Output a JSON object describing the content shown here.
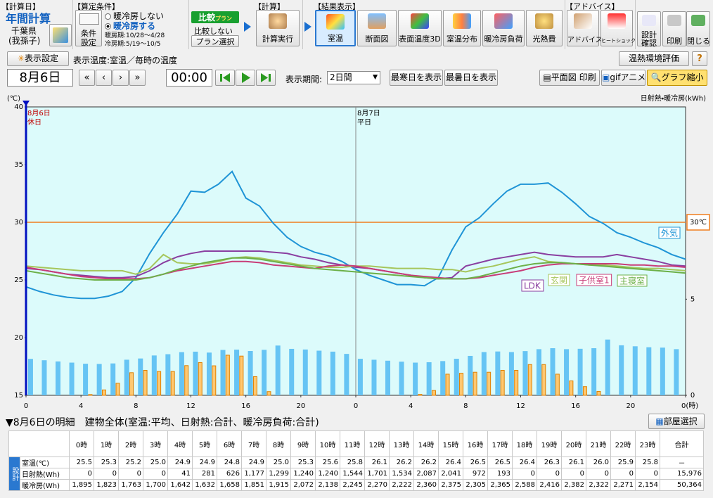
{
  "toolbar": {
    "calc_day": {
      "header": "【計算日】",
      "mode": "年間計算",
      "prefecture": "千葉県",
      "city": "(我孫子)"
    },
    "conditions": {
      "header": "【算定条件】",
      "button_top": "条件",
      "button_bottom": "設定",
      "options": [
        "暖冷房しない",
        "暖冷房する"
      ],
      "selected": 1,
      "heating": "暖房期:10/28～4/28",
      "cooling": "冷房期:5/19～10/5"
    },
    "compare": {
      "title": "比較",
      "title_sub": "プラン",
      "option": "比較しない",
      "button": "プラン選択"
    },
    "calc": {
      "header": "【計算】",
      "button": "計算実行"
    },
    "results": {
      "header": "【結果表示】",
      "buttons": [
        "室温",
        "断面図",
        "表面温度3D",
        "室温分布",
        "暖冷房負荷",
        "光熱費"
      ],
      "active": 0
    },
    "advice": {
      "header": "【アドバイス】",
      "buttons": [
        "アドバイス",
        "ヒートショック"
      ]
    },
    "tools": [
      [
        "設計",
        "確認"
      ],
      [
        "印刷"
      ],
      [
        "閉じる"
      ]
    ]
  },
  "display_bar": {
    "settings": "表示設定",
    "temp_mode": "表示温度:室温／毎時の温度",
    "evaluation": "温熱環境評価",
    "help": "?"
  },
  "nav_bar": {
    "date": "8月6日",
    "nav": [
      "«",
      "‹",
      "›",
      "»"
    ],
    "time": "00:00",
    "period_label": "表示期間:",
    "period": "2日間",
    "coldest": "最寒日を表示",
    "hottest": "最暑日を表示",
    "plan_print": "平面図 印刷",
    "gif": "gifアニメ",
    "shrink": "グラフ縮小"
  },
  "chart_data": {
    "type": "line",
    "y_label": "(℃)",
    "y2_label": "日射熱・暖冷房(kWh)",
    "x": [
      0,
      1,
      2,
      3,
      4,
      5,
      6,
      7,
      8,
      9,
      10,
      11,
      12,
      13,
      14,
      15,
      16,
      17,
      18,
      19,
      20,
      21,
      22,
      23,
      24,
      25,
      26,
      27,
      28,
      29,
      30,
      31,
      32,
      33,
      34,
      35,
      36,
      37,
      38,
      39,
      40,
      41,
      42,
      43,
      44,
      45,
      46,
      47,
      48
    ],
    "xlim": [
      0,
      48
    ],
    "xticks": [
      0,
      4,
      8,
      12,
      16,
      20,
      {
        "value": 24,
        "label": "0"
      },
      {
        "value": 28,
        "label": "4"
      },
      {
        "value": 32,
        "label": "8"
      },
      {
        "value": 36,
        "label": "12"
      },
      {
        "value": 40,
        "label": "16"
      },
      {
        "value": 44,
        "label": "20"
      },
      {
        "value": 48,
        "label": "0(時)"
      }
    ],
    "ylim": [
      15,
      40
    ],
    "yticks": [
      15,
      20,
      25,
      30,
      35,
      40
    ],
    "y2lim": [
      0,
      15
    ],
    "y2ticks": [
      0,
      5
    ],
    "cursor_x": 0,
    "reference_line": {
      "value": 30,
      "label": "30℃",
      "color": "#f07d1e"
    },
    "date_markers": [
      {
        "x": 0,
        "date": "8月6日",
        "day": "休日",
        "color": "#c00000"
      },
      {
        "x": 24,
        "date": "8月7日",
        "day": "平日",
        "color": "#000000"
      }
    ],
    "series": [
      {
        "name": "外気",
        "color": "#1f94d6",
        "values": [
          24.4,
          24.0,
          23.7,
          23.5,
          23.4,
          23.4,
          23.6,
          24.0,
          25.2,
          27.3,
          29.1,
          30.7,
          32.7,
          32.6,
          33.3,
          34.4,
          32.1,
          31.4,
          29.9,
          28.7,
          27.9,
          27.4,
          27.1,
          26.6,
          25.9,
          25.4,
          25.0,
          24.6,
          24.6,
          24.5,
          25.2,
          27.6,
          29.6,
          30.4,
          31.6,
          32.7,
          33.3,
          33.3,
          33.4,
          32.6,
          31.6,
          30.5,
          29.9,
          29.1,
          28.7,
          28.2,
          27.8,
          27.2,
          26.8
        ]
      },
      {
        "name": "LDK",
        "color": "#8a3fa0",
        "values": [
          26.0,
          25.9,
          25.7,
          25.5,
          25.4,
          25.3,
          25.2,
          25.2,
          25.3,
          25.8,
          26.5,
          27.0,
          27.3,
          27.5,
          27.5,
          27.5,
          27.5,
          27.5,
          27.4,
          27.3,
          27.0,
          26.8,
          26.5,
          26.3,
          26.1,
          26.0,
          25.8,
          25.6,
          25.4,
          25.2,
          25.1,
          25.2,
          26.2,
          26.5,
          26.8,
          27.0,
          27.2,
          27.4,
          27.2,
          27.1,
          27.0,
          27.0,
          27.0,
          27.2,
          27.0,
          26.8,
          26.6,
          26.3,
          26.2
        ]
      },
      {
        "name": "玄関",
        "color": "#a6c65c",
        "values": [
          26.2,
          26.1,
          26.0,
          25.9,
          25.8,
          25.8,
          25.8,
          25.8,
          25.5,
          26.0,
          27.2,
          26.5,
          26.4,
          26.4,
          26.6,
          26.9,
          27.0,
          26.9,
          26.7,
          26.5,
          26.3,
          26.2,
          26.1,
          26.1,
          26.2,
          26.2,
          26.1,
          26.0,
          26.0,
          26.0,
          25.9,
          25.9,
          25.7,
          26.0,
          26.2,
          26.5,
          26.8,
          27.0,
          26.6,
          26.5,
          26.4,
          26.3,
          26.3,
          26.2,
          26.1,
          26.0,
          26.0,
          25.9,
          25.8
        ]
      },
      {
        "name": "子供室1",
        "color": "#c83c78",
        "values": [
          26.1,
          25.9,
          25.7,
          25.5,
          25.3,
          25.2,
          25.1,
          25.1,
          25.1,
          25.2,
          25.5,
          25.8,
          26.0,
          26.2,
          26.4,
          26.6,
          26.6,
          26.5,
          26.3,
          26.2,
          26.1,
          26.0,
          26.2,
          26.3,
          26.2,
          26.0,
          25.8,
          25.6,
          25.4,
          25.3,
          25.2,
          25.1,
          25.1,
          25.2,
          25.4,
          25.6,
          25.8,
          26.1,
          26.3,
          26.4,
          26.4,
          26.4,
          26.4,
          26.4,
          26.3,
          26.3,
          26.2,
          26.2,
          26.1
        ]
      },
      {
        "name": "主寝室",
        "color": "#6cb048",
        "values": [
          25.8,
          25.6,
          25.4,
          25.2,
          25.1,
          25.0,
          25.0,
          25.0,
          25.0,
          25.2,
          25.5,
          25.9,
          26.2,
          26.5,
          26.7,
          26.9,
          26.9,
          26.8,
          26.6,
          26.4,
          26.2,
          26.0,
          25.9,
          25.8,
          25.7,
          25.6,
          25.5,
          25.4,
          25.3,
          25.2,
          25.1,
          25.1,
          25.1,
          25.3,
          25.6,
          25.9,
          26.2,
          26.4,
          26.5,
          26.5,
          26.4,
          26.3,
          26.2,
          26.1,
          26.0,
          25.9,
          25.8,
          25.7,
          25.6
        ]
      },
      {
        "type": "bar",
        "axis": "y2",
        "color": "#66c4f4",
        "x": [
          0,
          1,
          2,
          3,
          4,
          5,
          6,
          7,
          8,
          9,
          10,
          11,
          12,
          13,
          14,
          15,
          16,
          17,
          18,
          19,
          20,
          21,
          22,
          23,
          24,
          25,
          26,
          27,
          28,
          29,
          30,
          31,
          32,
          33,
          34,
          35,
          36,
          37,
          38,
          39,
          40,
          41,
          42,
          43,
          44,
          45,
          46,
          47
        ],
        "values": [
          1.895,
          1.823,
          1.763,
          1.7,
          1.642,
          1.632,
          1.658,
          1.851,
          1.915,
          2.072,
          2.138,
          2.245,
          2.27,
          2.222,
          2.36,
          2.375,
          2.305,
          2.365,
          2.588,
          2.416,
          2.382,
          2.322,
          2.271,
          2.154,
          1.9,
          1.85,
          1.8,
          1.75,
          1.7,
          1.72,
          1.78,
          1.9,
          2.05,
          2.25,
          2.28,
          2.25,
          2.3,
          2.4,
          2.45,
          2.4,
          2.42,
          2.45,
          2.9,
          2.6,
          2.55,
          2.5,
          2.48,
          2.4
        ]
      },
      {
        "type": "bar",
        "axis": "y2",
        "color": "#ffc870",
        "x": [
          0,
          1,
          2,
          3,
          4,
          5,
          6,
          7,
          8,
          9,
          10,
          11,
          12,
          13,
          14,
          15,
          16,
          17,
          18,
          19,
          20,
          21,
          22,
          23,
          24,
          25,
          26,
          27,
          28,
          29,
          30,
          31,
          32,
          33,
          34,
          35,
          36,
          37,
          38,
          39,
          40,
          41,
          42,
          43,
          44,
          45,
          46,
          47
        ],
        "values": [
          0,
          0,
          0,
          0,
          0.041,
          0.281,
          0.626,
          1.177,
          1.299,
          1.24,
          1.24,
          1.544,
          1.701,
          1.534,
          2.087,
          2.041,
          0.972,
          0.193,
          0,
          0,
          0,
          0,
          0,
          0,
          0,
          0,
          0,
          0,
          0.05,
          0.25,
          1.1,
          1.15,
          1.2,
          1.2,
          1.3,
          1.3,
          1.6,
          1.6,
          1.1,
          0.75,
          0.45,
          0.2,
          0,
          0,
          0,
          0,
          0,
          0
        ]
      }
    ]
  },
  "detail": {
    "title": "▼8月6日の明細　建物全体(室温:平均、日射熱:合計、暖冷房負荷:合計)",
    "button": "部屋選択",
    "table": {
      "side_label": "設計",
      "columns": [
        "0時",
        "1時",
        "2時",
        "3時",
        "4時",
        "5時",
        "6時",
        "7時",
        "8時",
        "9時",
        "10時",
        "11時",
        "12時",
        "13時",
        "14時",
        "15時",
        "16時",
        "17時",
        "18時",
        "19時",
        "20時",
        "21時",
        "22時",
        "23時",
        "合計"
      ],
      "rows": [
        {
          "label": "室温(℃)",
          "cells": [
            "25.5",
            "25.3",
            "25.2",
            "25.0",
            "24.9",
            "24.9",
            "24.8",
            "24.9",
            "25.0",
            "25.3",
            "25.6",
            "25.8",
            "26.1",
            "26.2",
            "26.2",
            "26.4",
            "26.5",
            "26.5",
            "26.4",
            "26.3",
            "26.1",
            "26.0",
            "25.9",
            "25.8",
            "－"
          ]
        },
        {
          "label": "日射熱(Wh)",
          "cells": [
            "0",
            "0",
            "0",
            "0",
            "41",
            "281",
            "626",
            "1,177",
            "1,299",
            "1,240",
            "1,240",
            "1,544",
            "1,701",
            "1,534",
            "2,087",
            "2,041",
            "972",
            "193",
            "0",
            "0",
            "0",
            "0",
            "0",
            "0",
            "15,976"
          ]
        },
        {
          "label": "暖冷房(Wh)",
          "cells": [
            "1,895",
            "1,823",
            "1,763",
            "1,700",
            "1,642",
            "1,632",
            "1,658",
            "1,851",
            "1,915",
            "2,072",
            "2,138",
            "2,245",
            "2,270",
            "2,222",
            "2,360",
            "2,375",
            "2,305",
            "2,365",
            "2,588",
            "2,416",
            "2,382",
            "2,322",
            "2,271",
            "2,154",
            "50,364"
          ]
        }
      ]
    }
  }
}
